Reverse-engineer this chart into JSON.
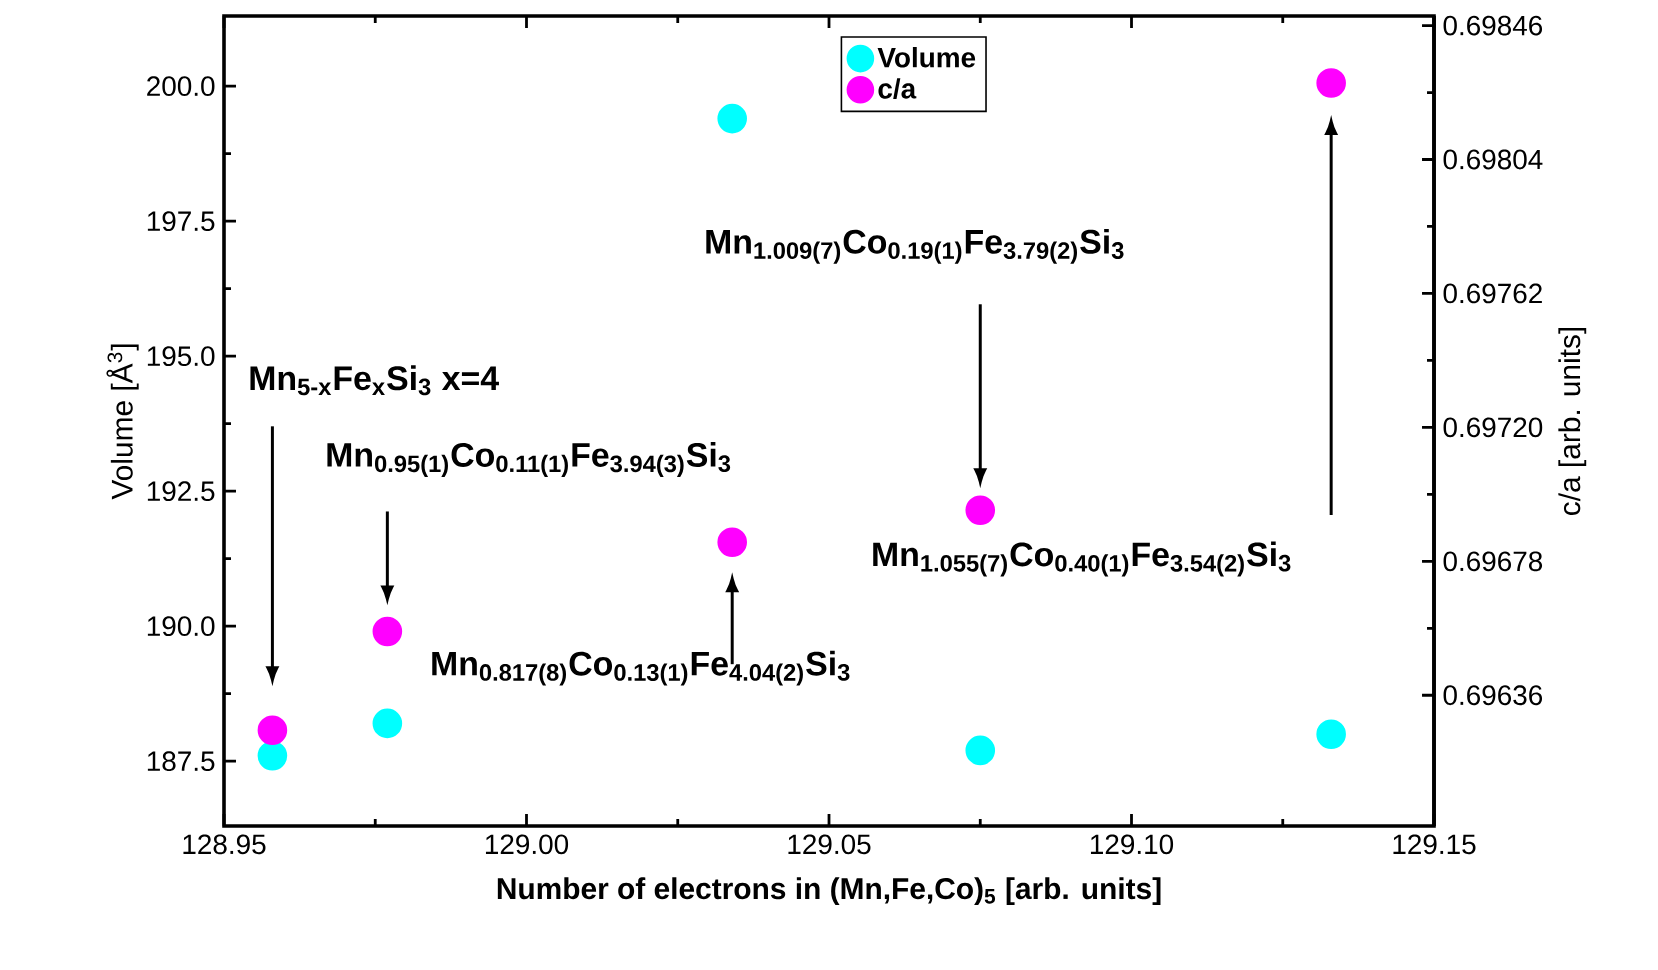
{
  "chart_data": {
    "type": "scatter",
    "xlabel": "Number of electrons in (Mn,Fe,Co)$_{5}$ [arb. units]",
    "ylabel": "Volume [Å$^{3}$]",
    "y2label": "c/a [arb. units]",
    "x": [
      128.958,
      128.977,
      129.034,
      129.075,
      129.133
    ],
    "series": [
      {
        "name": "Volume",
        "color": "#00ffff",
        "values": [
          187.6,
          188.2,
          199.4,
          187.7,
          188.0
        ]
      },
      {
        "name": "c/a",
        "color": "#ff00ff",
        "axis": "y2",
        "values": [
          0.69625,
          0.69656,
          0.69684,
          0.69694,
          0.69828
        ]
      }
    ],
    "xlim": [
      128.95,
      129.15
    ],
    "ylim": [
      186.3,
      201.3
    ],
    "y2lim": [
      0.69595,
      0.69849
    ],
    "xticks": [
      128.95,
      {
        "value": 129.0,
        "label": "129.00"
      },
      129.05,
      {
        "value": 129.1,
        "label": "129.10"
      },
      129.15
    ],
    "yticks": [
      {
        "value": 187.5,
        "label": "187.5"
      },
      {
        "value": 190,
        "label": "190.0"
      },
      {
        "value": 192.5,
        "label": "192.5"
      },
      {
        "value": 195,
        "label": "195.0"
      },
      {
        "value": 197.5,
        "label": "197.5"
      },
      {
        "value": 200,
        "label": "200.0"
      }
    ],
    "y2ticks": [
      0.69636,
      {
        "value": 0.69678,
        "label": "0.69678"
      },
      {
        "value": 0.6972,
        "label": "0.69720"
      },
      0.69762,
      0.69804,
      0.69846
    ],
    "marker": "circle",
    "legend": "top",
    "annotations": [
      "Mn$_{5-x}$Fe$_{x}$Si$_{3}$ x=4",
      "Mn$_{0.95(1)}$Co$_{0.11(1)}$Fe$_{3.94(3)}$Si$_{3}$",
      "Mn$_{0.817(8)}$Co$_{0.13(1)}$Fe$_{4.04(2)}$Si$_{3}$",
      "Mn$_{1.009(7)}$Co$_{0.19(1)}$Fe$_{3.79(2)}$Si$_{3}$",
      "Mn$_{1.055(7)}$Co$_{0.40(1)}$Fe$_{3.54(2)}$Si$_{3}$"
    ]
  }
}
